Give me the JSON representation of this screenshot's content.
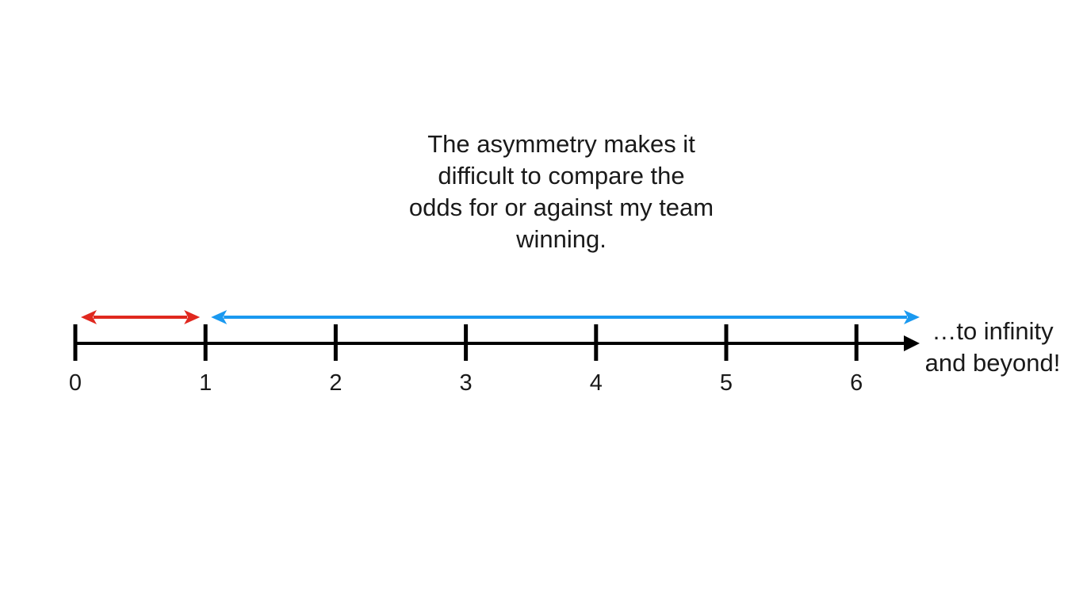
{
  "caption": {
    "lines": [
      "The asymmetry makes it",
      "difficult to compare the",
      "odds for or against my team",
      "winning."
    ]
  },
  "number_line": {
    "ticks": [
      0,
      1,
      2,
      3,
      4,
      5,
      6
    ],
    "tick_labels": [
      "0",
      "1",
      "2",
      "3",
      "4",
      "5",
      "6"
    ],
    "end_note_lines": [
      "…to infinity",
      "and beyond!"
    ],
    "axis_color": "#000000",
    "ranges": [
      {
        "from": 0,
        "to": 1,
        "color": "#e0281f"
      },
      {
        "from": 1,
        "to": 6.5,
        "color": "#1a99f0"
      }
    ]
  }
}
